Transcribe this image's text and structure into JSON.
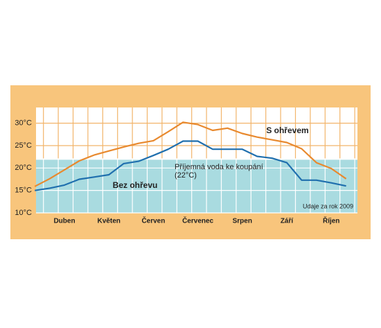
{
  "chart_data": {
    "type": "line",
    "categories": [
      null,
      null,
      "Duben",
      null,
      null,
      "Květen",
      null,
      null,
      "Červen",
      null,
      null,
      "Červenec",
      null,
      null,
      "Srpen",
      null,
      null,
      "Září",
      null,
      null,
      "Říjen",
      null
    ],
    "series": [
      {
        "name": "S ohřevem",
        "color": "#e8892e",
        "values": [
          15.9,
          17.6,
          19.6,
          21.6,
          22.9,
          23.8,
          24.7,
          25.5,
          26.1,
          28.1,
          30.2,
          29.7,
          28.4,
          28.9,
          27.7,
          26.9,
          26.3,
          25.7,
          24.3,
          21.2,
          19.9,
          17.6
        ]
      },
      {
        "name": "Bez ohřevu",
        "color": "#1f6fae",
        "values": [
          15.0,
          15.5,
          16.2,
          17.5,
          18.0,
          18.5,
          21.0,
          21.5,
          22.8,
          24.2,
          26.0,
          26.0,
          24.2,
          24.2,
          24.2,
          22.6,
          22.2,
          21.2,
          17.3,
          17.3,
          16.7,
          16.0
        ]
      }
    ],
    "ylim": [
      10,
      33.5
    ],
    "yticks": [
      {
        "value": 10,
        "label": "10°C"
      },
      {
        "value": 15,
        "label": "15°C"
      },
      {
        "value": 20,
        "label": "20°C"
      },
      {
        "value": 25,
        "label": "25°C"
      },
      {
        "value": 30,
        "label": "30°C"
      }
    ],
    "comfort_band": {
      "value": 22,
      "label": "Příjemná voda ke koupání",
      "sublabel": "(22°C)"
    },
    "note": "Udaje za rok 2009",
    "grid": true
  }
}
